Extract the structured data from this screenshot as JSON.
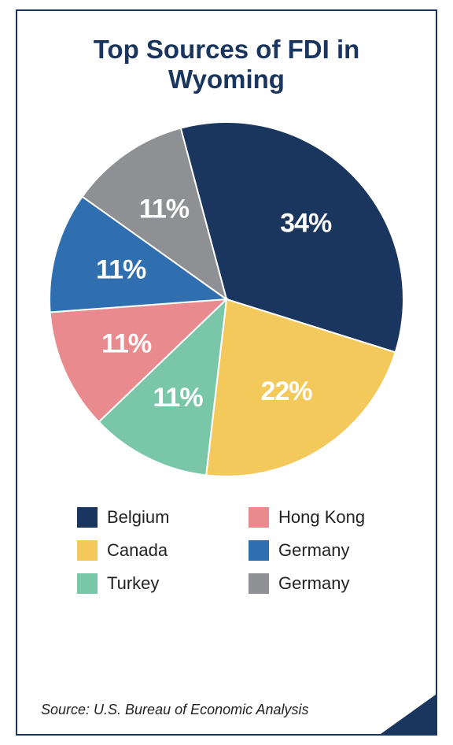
{
  "title": "Top Sources of FDI in Wyoming",
  "source": "Source: U.S. Bureau of Economic Analysis",
  "border_color": "#1a355e",
  "title_color": "#1a355e",
  "title_fontsize": 33,
  "legend_fontsize": 22,
  "source_fontsize": 18,
  "slice_label_fontsize": 34,
  "slice_label_color": "#ffffff",
  "background_color": "#ffffff",
  "chart": {
    "type": "pie",
    "radius": 225,
    "start_angle_deg": -105,
    "direction": "clockwise",
    "slices": [
      {
        "name": "Belgium",
        "value": 34,
        "label": "34%",
        "color": "#1a355e"
      },
      {
        "name": "Canada",
        "value": 22,
        "label": "22%",
        "color": "#f3c95c"
      },
      {
        "name": "Turkey",
        "value": 11,
        "label": "11%",
        "color": "#79c7a8"
      },
      {
        "name": "Hong Kong",
        "value": 11,
        "label": "11%",
        "color": "#e98a8e"
      },
      {
        "name": "Germany",
        "value": 11,
        "label": "11%",
        "color": "#2f6fb0"
      },
      {
        "name": "Germany",
        "value": 11,
        "label": "11%",
        "color": "#8f9093"
      }
    ],
    "gap_color": "#ffffff",
    "gap_width": 2
  },
  "legend_columns": [
    [
      {
        "label": "Belgium",
        "color": "#1a355e"
      },
      {
        "label": "Canada",
        "color": "#f3c95c"
      },
      {
        "label": "Turkey",
        "color": "#79c7a8"
      }
    ],
    [
      {
        "label": "Hong Kong",
        "color": "#e98a8e"
      },
      {
        "label": "Germany",
        "color": "#2f6fb0"
      },
      {
        "label": "Germany",
        "color": "#8f9093"
      }
    ]
  ]
}
